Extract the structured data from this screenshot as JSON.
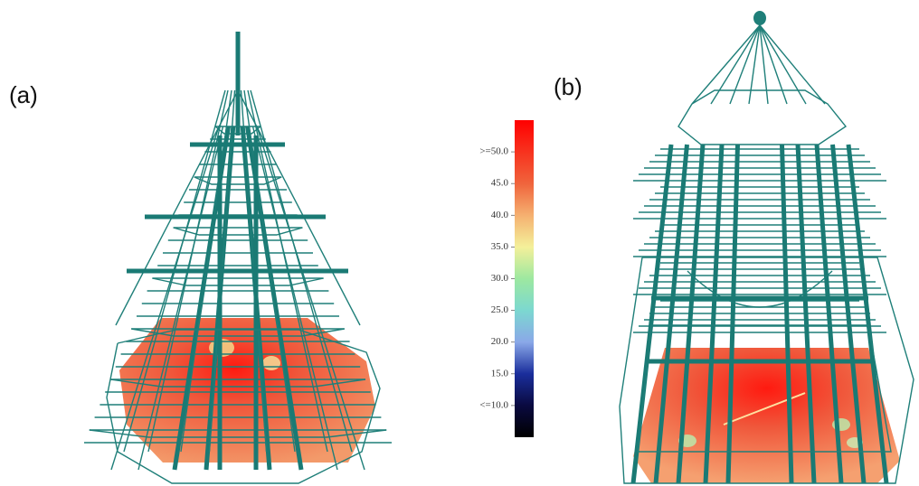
{
  "panels": [
    {
      "label": "(a)"
    },
    {
      "label": "(b)"
    }
  ],
  "colorbar": {
    "range": [
      5,
      55
    ],
    "ticks": [
      {
        "value": 50,
        "label": ">=50.0"
      },
      {
        "value": 45,
        "label": "45.0"
      },
      {
        "value": 40,
        "label": "40.0"
      },
      {
        "value": 35,
        "label": "35.0"
      },
      {
        "value": 30,
        "label": "30.0"
      },
      {
        "value": 25,
        "label": "25.0"
      },
      {
        "value": 20,
        "label": "20.0"
      },
      {
        "value": 15,
        "label": "15.0"
      },
      {
        "value": 10,
        "label": "<=10.0"
      }
    ]
  }
}
